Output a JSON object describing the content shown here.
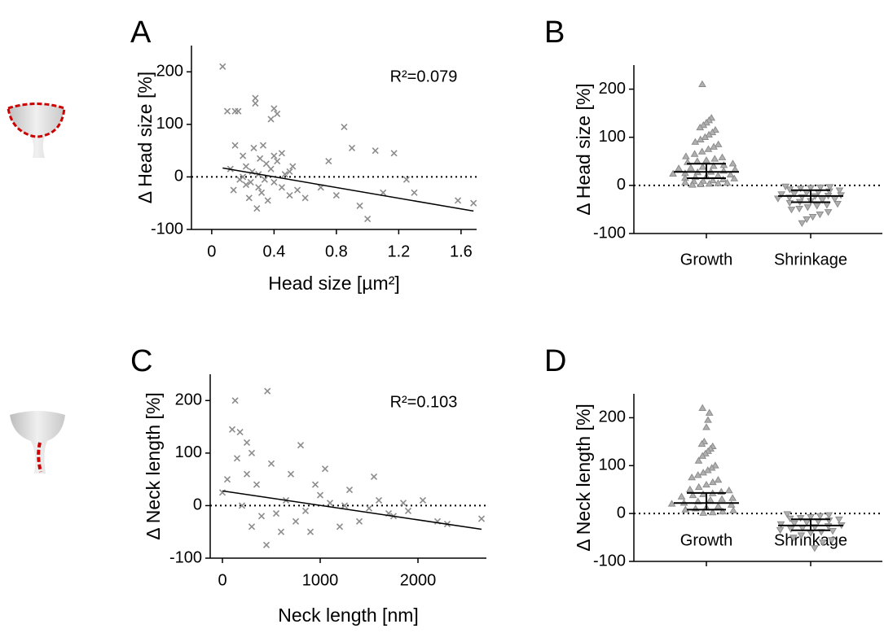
{
  "chart_data": [
    {
      "type": "scatter",
      "panel": "A",
      "xlabel": "Head size [µm²]",
      "ylabel": "Δ Head size [%]",
      "annotation": "R²=0.079",
      "color": "#8c8c8c",
      "xlim": [
        -0.13,
        1.7
      ],
      "ylim": [
        -100,
        250
      ],
      "xticks": [
        0,
        0.4,
        0.8,
        1.2,
        1.6
      ],
      "yticks": [
        -100,
        0,
        100,
        200
      ],
      "hline": 0,
      "x": [
        0.07,
        0.1,
        0.15,
        0.17,
        0.28,
        0.28,
        0.4,
        0.42,
        0.38,
        0.85,
        1.05,
        1.17,
        0.9,
        0.75,
        1.3,
        1.25,
        1.0,
        1.58,
        1.68,
        0.95,
        0.6,
        0.7,
        1.1,
        0.8,
        0.5,
        0.45,
        0.2,
        0.22,
        0.25,
        0.3,
        0.32,
        0.35,
        0.18,
        0.27,
        0.33,
        0.4,
        0.42,
        0.24,
        0.29,
        0.36,
        0.2,
        0.26,
        0.31,
        0.38,
        0.45,
        0.5,
        0.55,
        0.15,
        0.12,
        0.14,
        0.22,
        0.3,
        0.34,
        0.4,
        0.47,
        0.52
      ],
      "values": [
        210,
        125,
        125,
        125,
        150,
        140,
        130,
        120,
        110,
        95,
        50,
        45,
        55,
        30,
        -30,
        -5,
        -80,
        -45,
        -50,
        -55,
        -40,
        -20,
        -30,
        -35,
        10,
        -20,
        40,
        20,
        -10,
        5,
        -30,
        25,
        -5,
        55,
        60,
        -10,
        30,
        -40,
        -60,
        -45,
        0,
        10,
        35,
        15,
        45,
        -35,
        -25,
        60,
        15,
        -25,
        -15,
        -20,
        -5,
        40,
        5,
        20
      ],
      "fit": {
        "x": [
          0.07,
          1.68
        ],
        "y": [
          17,
          -65
        ]
      }
    },
    {
      "type": "strip",
      "panel": "B",
      "ylabel": "Δ Head size [%]",
      "color": "#8c8c8c",
      "categories": [
        "Growth",
        "Shrinkage"
      ],
      "ylim": [
        -100,
        250
      ],
      "yticks": [
        -100,
        0,
        100,
        200
      ],
      "hline": 0,
      "values": [
        [
          210,
          140,
          135,
          130,
          125,
          120,
          115,
          110,
          105,
          100,
          95,
          90,
          85,
          80,
          75,
          70,
          65,
          60,
          58,
          55,
          52,
          50,
          48,
          45,
          42,
          40,
          38,
          36,
          35,
          33,
          30,
          28,
          27,
          25,
          24,
          22,
          20,
          18,
          17,
          15,
          14,
          12,
          10,
          9,
          8,
          6,
          5,
          4,
          3,
          2,
          1
        ],
        [
          -2,
          -3,
          -4,
          -5,
          -6,
          -8,
          -10,
          -12,
          -14,
          -15,
          -17,
          -18,
          -20,
          -21,
          -22,
          -24,
          -25,
          -27,
          -28,
          -30,
          -32,
          -34,
          -36,
          -38,
          -40,
          -42,
          -45,
          -48,
          -50,
          -55,
          -60,
          -65,
          -70,
          -78
        ]
      ],
      "center": [
        28,
        -22
      ],
      "low": [
        15,
        -35
      ],
      "high": [
        45,
        -10
      ]
    },
    {
      "type": "scatter",
      "panel": "C",
      "xlabel": "Neck length [nm]",
      "ylabel": "Δ Neck length [%]",
      "annotation": "R²=0.103",
      "color": "#8c8c8c",
      "xlim": [
        -125,
        2700
      ],
      "ylim": [
        -100,
        250
      ],
      "xticks": [
        0,
        1000,
        2000
      ],
      "yticks": [
        -100,
        0,
        100,
        200
      ],
      "hline": 0,
      "x": [
        130,
        460,
        100,
        180,
        250,
        300,
        800,
        50,
        1550,
        1050,
        2050,
        2200,
        2650,
        1850,
        450,
        600,
        900,
        1200,
        1400,
        1700,
        1300,
        1000,
        700,
        500,
        350,
        200,
        400,
        650,
        850,
        1100,
        1500,
        1600,
        300,
        750,
        950,
        550,
        150,
        250,
        1250,
        1750,
        0,
        1900,
        2300
      ],
      "values": [
        200,
        218,
        145,
        140,
        120,
        100,
        115,
        50,
        55,
        70,
        10,
        -30,
        -25,
        5,
        -75,
        -50,
        -50,
        -40,
        -30,
        -15,
        30,
        20,
        60,
        80,
        40,
        0,
        -20,
        10,
        -10,
        5,
        -5,
        10,
        -40,
        -30,
        40,
        -15,
        90,
        60,
        0,
        -20,
        25,
        -10,
        -35
      ],
      "fit": {
        "x": [
          0,
          2650
        ],
        "y": [
          28,
          -45
        ]
      }
    },
    {
      "type": "strip",
      "panel": "D",
      "ylabel": "Δ Neck length [%]",
      "color": "#8c8c8c",
      "categories": [
        "Growth",
        "Shrinkage"
      ],
      "ylim": [
        -100,
        250
      ],
      "yticks": [
        -100,
        0,
        100,
        200
      ],
      "hline": 0,
      "values": [
        [
          220,
          210,
          195,
          180,
          150,
          145,
          140,
          135,
          130,
          125,
          120,
          110,
          100,
          95,
          90,
          85,
          80,
          75,
          70,
          65,
          60,
          55,
          50,
          48,
          45,
          42,
          40,
          38,
          35,
          32,
          30,
          28,
          25,
          22,
          20,
          18,
          15,
          12,
          10,
          8,
          6,
          4,
          2,
          1
        ],
        [
          -1,
          -3,
          -5,
          -7,
          -9,
          -10,
          -12,
          -14,
          -16,
          -18,
          -20,
          -22,
          -24,
          -26,
          -28,
          -30,
          -32,
          -34,
          -36,
          -38,
          -40,
          -45,
          -50,
          -55,
          -60,
          -72
        ]
      ],
      "center": [
        22,
        -25
      ],
      "low": [
        8,
        -35
      ],
      "high": [
        43,
        -12
      ]
    }
  ]
}
